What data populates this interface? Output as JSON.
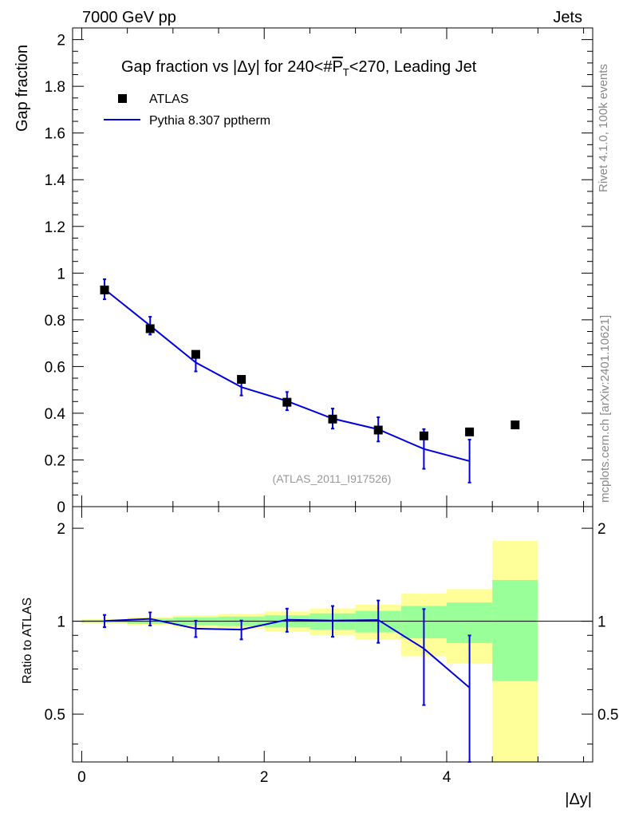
{
  "header": {
    "left": "7000 GeV pp",
    "right": "Jets"
  },
  "side_labels": {
    "upper": "Rivet 4.1.0,  100k events",
    "lower": "mcplots.cern.ch [arXiv:2401.10621]"
  },
  "chart_data": [
    {
      "type": "scatter",
      "title_parts": {
        "pre": "Gap fraction vs |",
        "delta": "Δ",
        "y_mid": "y| for 240<#",
        "pbar": "P",
        "sub": "T",
        "post": "<270, Leading Jet"
      },
      "ylabel": "Gap fraction",
      "watermark": "(ATLAS_2011_I917526)",
      "xlim": [
        -0.1,
        5.6
      ],
      "ylim": [
        0,
        2.05
      ],
      "yticks": [
        {
          "v": 0,
          "label": "0"
        },
        {
          "v": 0.2,
          "label": "0.2"
        },
        {
          "v": 0.4,
          "label": "0.4"
        },
        {
          "v": 0.6,
          "label": "0.6"
        },
        {
          "v": 0.8,
          "label": "0.8"
        },
        {
          "v": 1,
          "label": "1"
        },
        {
          "v": 1.2,
          "label": "1.2"
        },
        {
          "v": 1.4,
          "label": "1.4"
        },
        {
          "v": 1.6,
          "label": "1.6"
        },
        {
          "v": 1.8,
          "label": "1.8"
        },
        {
          "v": 2,
          "label": "2"
        }
      ],
      "legend": [
        {
          "name": "ATLAS",
          "style": "marker"
        },
        {
          "name": "Pythia 8.307 pptherm",
          "style": "line"
        }
      ],
      "series": [
        {
          "name": "ATLAS",
          "color": "#000000",
          "x": [
            0.25,
            0.75,
            1.25,
            1.75,
            2.25,
            2.75,
            3.25,
            3.75,
            4.25,
            4.75
          ],
          "y": [
            0.928,
            0.762,
            0.652,
            0.545,
            0.447,
            0.375,
            0.328,
            0.303,
            0.32,
            0.35
          ]
        },
        {
          "name": "Pythia 8.307 pptherm",
          "color": "#0000dd",
          "x": [
            0.25,
            0.75,
            1.25,
            1.75,
            2.25,
            2.75,
            3.25,
            3.75,
            4.25
          ],
          "y": [
            0.931,
            0.775,
            0.617,
            0.512,
            0.452,
            0.377,
            0.331,
            0.247,
            0.195
          ],
          "err": [
            0.043,
            0.038,
            0.038,
            0.036,
            0.039,
            0.043,
            0.052,
            0.085,
            0.092
          ]
        }
      ]
    },
    {
      "type": "line",
      "ylabel": "Ratio to ATLAS",
      "xlabel_parts": {
        "open": "|",
        "delta": "Δ",
        "close": "y|"
      },
      "xlim": [
        -0.1,
        5.6
      ],
      "ylim": [
        0.35,
        2.35
      ],
      "reference": 1,
      "xticks": [
        {
          "v": 0,
          "label": "0"
        },
        {
          "v": 2,
          "label": "2"
        },
        {
          "v": 4,
          "label": "4"
        }
      ],
      "yticks": [
        {
          "v": 0.5,
          "label": "0.5"
        },
        {
          "v": 1,
          "label": "1"
        },
        {
          "v": 2,
          "label": "2"
        }
      ],
      "bands": [
        {
          "x0": 0.0,
          "x1": 0.5,
          "yellow": [
            0.985,
            1.015
          ],
          "green": [
            0.99,
            1.01
          ]
        },
        {
          "x0": 0.5,
          "x1": 1.0,
          "yellow": [
            0.97,
            1.03
          ],
          "green": [
            0.98,
            1.02
          ]
        },
        {
          "x0": 1.0,
          "x1": 1.5,
          "yellow": [
            0.955,
            1.045
          ],
          "green": [
            0.97,
            1.03
          ]
        },
        {
          "x0": 1.5,
          "x1": 2.0,
          "yellow": [
            0.945,
            1.055
          ],
          "green": [
            0.965,
            1.035
          ]
        },
        {
          "x0": 2.0,
          "x1": 2.5,
          "yellow": [
            0.925,
            1.075
          ],
          "green": [
            0.955,
            1.045
          ]
        },
        {
          "x0": 2.5,
          "x1": 3.0,
          "yellow": [
            0.9,
            1.1
          ],
          "green": [
            0.94,
            1.06
          ]
        },
        {
          "x0": 3.0,
          "x1": 3.5,
          "yellow": [
            0.87,
            1.13
          ],
          "green": [
            0.92,
            1.08
          ]
        },
        {
          "x0": 3.5,
          "x1": 4.0,
          "yellow": [
            0.77,
            1.23
          ],
          "green": [
            0.88,
            1.12
          ]
        },
        {
          "x0": 4.0,
          "x1": 4.5,
          "yellow": [
            0.73,
            1.27
          ],
          "green": [
            0.85,
            1.15
          ]
        },
        {
          "x0": 4.5,
          "x1": 5.0,
          "yellow": [
            0.35,
            1.82
          ],
          "green": [
            0.64,
            1.36
          ]
        }
      ],
      "series": [
        {
          "name": "Pythia 8.307 pptherm",
          "color": "#0000dd",
          "x": [
            0.25,
            0.75,
            1.25,
            1.75,
            2.25,
            2.75,
            3.25,
            3.75,
            4.25
          ],
          "y": [
            1.002,
            1.018,
            0.946,
            0.939,
            1.011,
            1.005,
            1.009,
            0.815,
            0.609
          ],
          "err": [
            0.046,
            0.05,
            0.058,
            0.066,
            0.087,
            0.115,
            0.158,
            0.28,
            0.29
          ]
        }
      ]
    }
  ]
}
